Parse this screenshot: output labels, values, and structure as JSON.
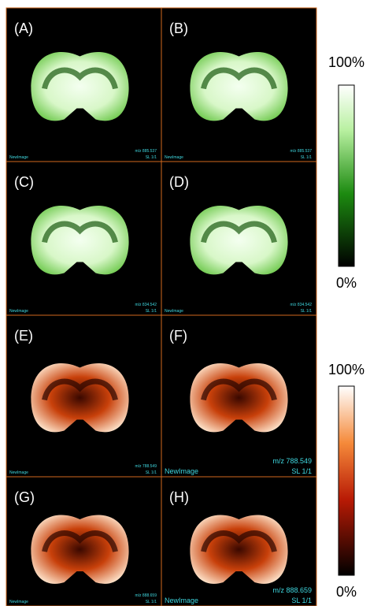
{
  "panels": [
    {
      "label": "(A)",
      "image_name": "NewImage",
      "mz": "m/z 885.537",
      "slice": "SL 1/1"
    },
    {
      "label": "(B)",
      "image_name": "NewImage",
      "mz": "m/z 885.537",
      "slice": "SL 1/1"
    },
    {
      "label": "(C)",
      "image_name": "NewImage",
      "mz": "m/z 834.542",
      "slice": "SL 1/1"
    },
    {
      "label": "(D)",
      "image_name": "NewImage",
      "mz": "m/z 834.542",
      "slice": "SL 1/1"
    },
    {
      "label": "(E)",
      "image_name": "NewImage",
      "mz": "m/z 788.549",
      "slice": "SL 1/1"
    },
    {
      "label": "(F)",
      "image_name": "NewImage",
      "mz": "m/z 788.549",
      "slice": "SL 1/1"
    },
    {
      "label": "(G)",
      "image_name": "NewImage",
      "mz": "m/z 888.659",
      "slice": "SL 1/1"
    },
    {
      "label": "(H)",
      "image_name": "NewImage",
      "mz": "m/z 888.659",
      "slice": "SL 1/1"
    }
  ],
  "scales": [
    {
      "max_label": "100%",
      "min_label": "0%"
    },
    {
      "max_label": "100%",
      "min_label": "0%"
    }
  ]
}
